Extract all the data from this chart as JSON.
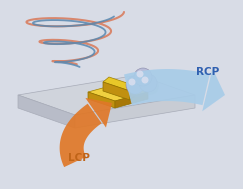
{
  "bg_color": "#d8dce6",
  "plate_top_color": "#d0d4dc",
  "plate_left_color": "#b8bcc8",
  "plate_right_color": "#c8ccd4",
  "plate_edge_color": "#a8acb8",
  "gold_top1": "#f0d040",
  "gold_top2": "#e8c828",
  "gold_side1": "#c09010",
  "gold_side2": "#a87808",
  "np_color": "#b8bcd8",
  "np_edge": "#8888a8",
  "np_highlight": "#dde0f0",
  "lcp_color": "#e07828",
  "lcp_label": "#c06418",
  "rcp_color": "#a8cce8",
  "rcp_label": "#3060b0",
  "spiral_orange": "#d87858",
  "spiral_blue": "#5888b0",
  "shadow_color": "#c0c4cc"
}
